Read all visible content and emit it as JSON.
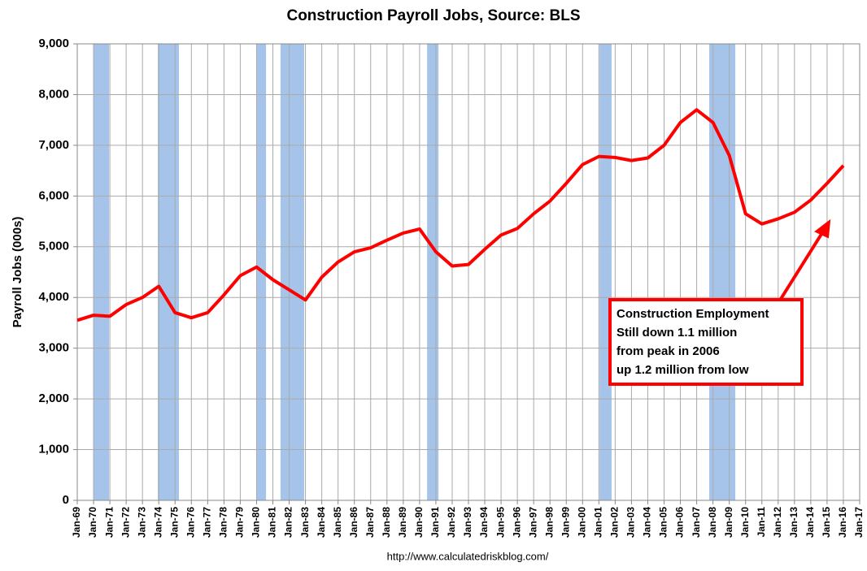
{
  "chart_data": {
    "type": "line",
    "title": "Construction Payroll Jobs, Source: BLS",
    "y_label": "Payroll Jobs (000s)",
    "source": "http://www.calculatedriskblog.com/",
    "categories": [
      "Jan-69",
      "Jan-70",
      "Jan-71",
      "Jan-72",
      "Jan-73",
      "Jan-74",
      "Jan-75",
      "Jan-76",
      "Jan-77",
      "Jan-78",
      "Jan-79",
      "Jan-80",
      "Jan-81",
      "Jan-82",
      "Jan-83",
      "Jan-84",
      "Jan-85",
      "Jan-86",
      "Jan-87",
      "Jan-88",
      "Jan-89",
      "Jan-90",
      "Jan-91",
      "Jan-92",
      "Jan-93",
      "Jan-94",
      "Jan-95",
      "Jan-96",
      "Jan-97",
      "Jan-98",
      "Jan-99",
      "Jan-00",
      "Jan-01",
      "Jan-02",
      "Jan-03",
      "Jan-04",
      "Jan-05",
      "Jan-06",
      "Jan-07",
      "Jan-08",
      "Jan-09",
      "Jan-10",
      "Jan-11",
      "Jan-12",
      "Jan-13",
      "Jan-14",
      "Jan-15",
      "Jan-16",
      "Jan-17"
    ],
    "series": [
      {
        "name": "Construction",
        "color": "#ff0000",
        "values": [
          3550,
          3650,
          3630,
          3860,
          4000,
          4220,
          3700,
          3600,
          3700,
          4050,
          4430,
          4600,
          4350,
          4150,
          3950,
          4400,
          4700,
          4900,
          4980,
          5130,
          5270,
          5350,
          4900,
          4620,
          4650,
          4950,
          5230,
          5360,
          5650,
          5900,
          6250,
          6620,
          6780,
          6760,
          6700,
          6750,
          7000,
          7450,
          7700,
          7450,
          6800,
          5650,
          5450,
          5550,
          5680,
          5920,
          6250,
          6600,
          null
        ]
      }
    ],
    "recession_color": "#a6c4ea",
    "recessions": [
      [
        1.0,
        1.95
      ],
      [
        4.94,
        6.24
      ],
      [
        10.98,
        11.58
      ],
      [
        12.47,
        13.92
      ],
      [
        21.46,
        22.16
      ],
      [
        32.04,
        32.78
      ],
      [
        38.77,
        40.37
      ]
    ],
    "ylim": [
      0,
      9000
    ],
    "yticks": [
      0,
      {
        "value": 1000,
        "label": "1,000"
      },
      {
        "value": 2000,
        "label": "2,000"
      },
      {
        "value": 3000,
        "label": "3,000"
      },
      {
        "value": 4000,
        "label": "4,000"
      },
      {
        "value": 5000,
        "label": "5,000"
      },
      {
        "value": 6000,
        "label": "6,000"
      },
      {
        "value": 7000,
        "label": "7,000"
      },
      {
        "value": 8000,
        "label": "8,000"
      },
      {
        "value": 9000,
        "label": "9,000"
      }
    ],
    "grid": true,
    "annotation": [
      "Construction  Employment",
      "Still down 1.1 million",
      "from peak in 2006",
      "up 1.2 million from low"
    ]
  }
}
